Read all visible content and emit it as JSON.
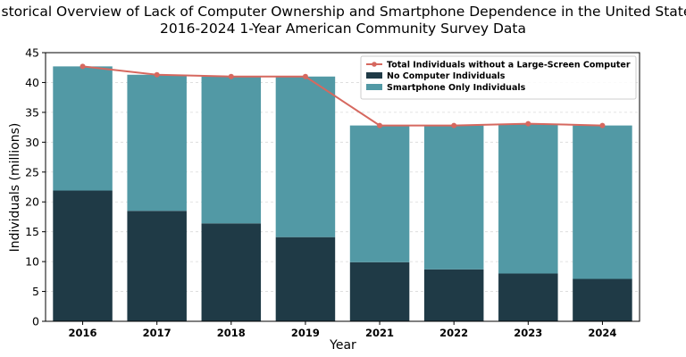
{
  "chart_data": {
    "type": "bar",
    "stacked": true,
    "title_line1": "Historical Overview of Lack of Computer Ownership and Smartphone Dependence in the United States",
    "title_line2": "2016-2024 1-Year American Community Survey Data",
    "xlabel": "Year",
    "ylabel": "Individuals (millions)",
    "categories": [
      "2016",
      "2017",
      "2018",
      "2019",
      "2021",
      "2022",
      "2023",
      "2024"
    ],
    "ylim": [
      0,
      45
    ],
    "yticks": [
      0,
      5,
      10,
      15,
      20,
      25,
      30,
      35,
      40,
      45
    ],
    "grid": "horizontal dashed",
    "legend_position": "top-right",
    "series": [
      {
        "name": "No Computer Individuals",
        "kind": "bar",
        "color": "#1f3a46",
        "values": [
          21.9,
          18.5,
          16.4,
          14.1,
          9.9,
          8.7,
          8.0,
          7.1
        ]
      },
      {
        "name": "Smartphone Only Individuals",
        "kind": "bar",
        "color": "#5299a5",
        "values": [
          20.8,
          22.8,
          24.6,
          26.9,
          22.9,
          24.1,
          25.1,
          25.7
        ]
      },
      {
        "name": "Total Individuals without a Large-Screen Computer",
        "kind": "line",
        "color": "#d6685f",
        "values": [
          42.7,
          41.3,
          41.0,
          41.0,
          32.8,
          32.8,
          33.1,
          32.8
        ]
      }
    ]
  }
}
